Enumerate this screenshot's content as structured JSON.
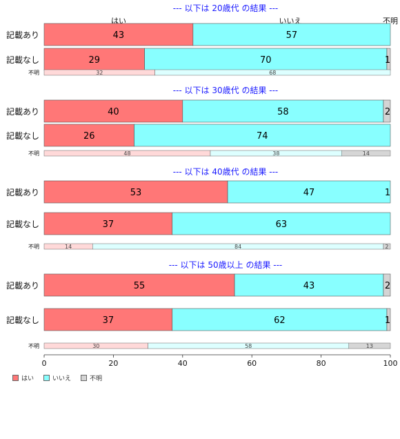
{
  "chart_data": {
    "type": "bar",
    "orientation": "horizontal",
    "stacked": "percent",
    "xlim": [
      0,
      100
    ],
    "xticks": [
      0,
      20,
      40,
      60,
      80,
      100
    ],
    "top_labels": [
      "はい",
      "いいえ",
      "不明"
    ],
    "legend": {
      "placement": "bottom-left",
      "entries": [
        {
          "label": "はい",
          "color": "#ff7777"
        },
        {
          "label": "いいえ",
          "color": "#88ffff"
        },
        {
          "label": "不明",
          "color": "#d4d4d4"
        }
      ]
    },
    "colors": {
      "main": [
        "#ff7777",
        "#88ffff",
        "#d4d4d4"
      ],
      "minor": [
        "#ffd9d9",
        "#ddffff",
        "#d6d6d6"
      ],
      "title": "#1a1aff"
    },
    "groups": [
      {
        "title": "--- 以下は 20歳代 の結果 ---",
        "rows": [
          {
            "label": "記載あり",
            "values": [
              43,
              57,
              0.6
            ],
            "labels": [
              "43",
              "57",
              ""
            ]
          },
          {
            "label": "記載なし",
            "values": [
              29,
              70,
              1
            ],
            "labels": [
              "29",
              "70",
              "1"
            ]
          }
        ],
        "minor": {
          "label": "不明",
          "values": [
            32,
            68,
            0
          ],
          "labels": [
            "32",
            "68",
            ""
          ]
        }
      },
      {
        "title": "--- 以下は 30歳代 の結果 ---",
        "rows": [
          {
            "label": "記載あり",
            "values": [
              40,
              58,
              2
            ],
            "labels": [
              "40",
              "58",
              "2"
            ]
          },
          {
            "label": "記載なし",
            "values": [
              26,
              74,
              0.3
            ],
            "labels": [
              "26",
              "74",
              ""
            ]
          }
        ],
        "minor": {
          "label": "不明",
          "values": [
            48,
            38,
            14
          ],
          "labels": [
            "48",
            "38",
            "14"
          ]
        }
      },
      {
        "title": "--- 以下は 40歳代 の結果 ---",
        "rows": [
          {
            "label": "記載あり",
            "values": [
              53,
              47,
              1
            ],
            "labels": [
              "53",
              "47",
              "1"
            ]
          },
          {
            "label": "記載なし",
            "values": [
              37,
              63,
              0.3
            ],
            "labels": [
              "37",
              "63",
              ""
            ]
          }
        ],
        "minor": {
          "label": "不明",
          "values": [
            14,
            84,
            2
          ],
          "labels": [
            "14",
            "84",
            "2"
          ]
        }
      },
      {
        "title": "--- 以下は 50歳以上 の結果 ---",
        "rows": [
          {
            "label": "記載あり",
            "values": [
              55,
              43,
              2
            ],
            "labels": [
              "55",
              "43",
              "2"
            ]
          },
          {
            "label": "記載なし",
            "values": [
              37,
              62,
              1
            ],
            "labels": [
              "37",
              "62",
              "1"
            ]
          }
        ],
        "minor": {
          "label": "不明",
          "values": [
            30,
            58,
            13
          ],
          "labels": [
            "30",
            "58",
            "13"
          ]
        }
      }
    ]
  }
}
